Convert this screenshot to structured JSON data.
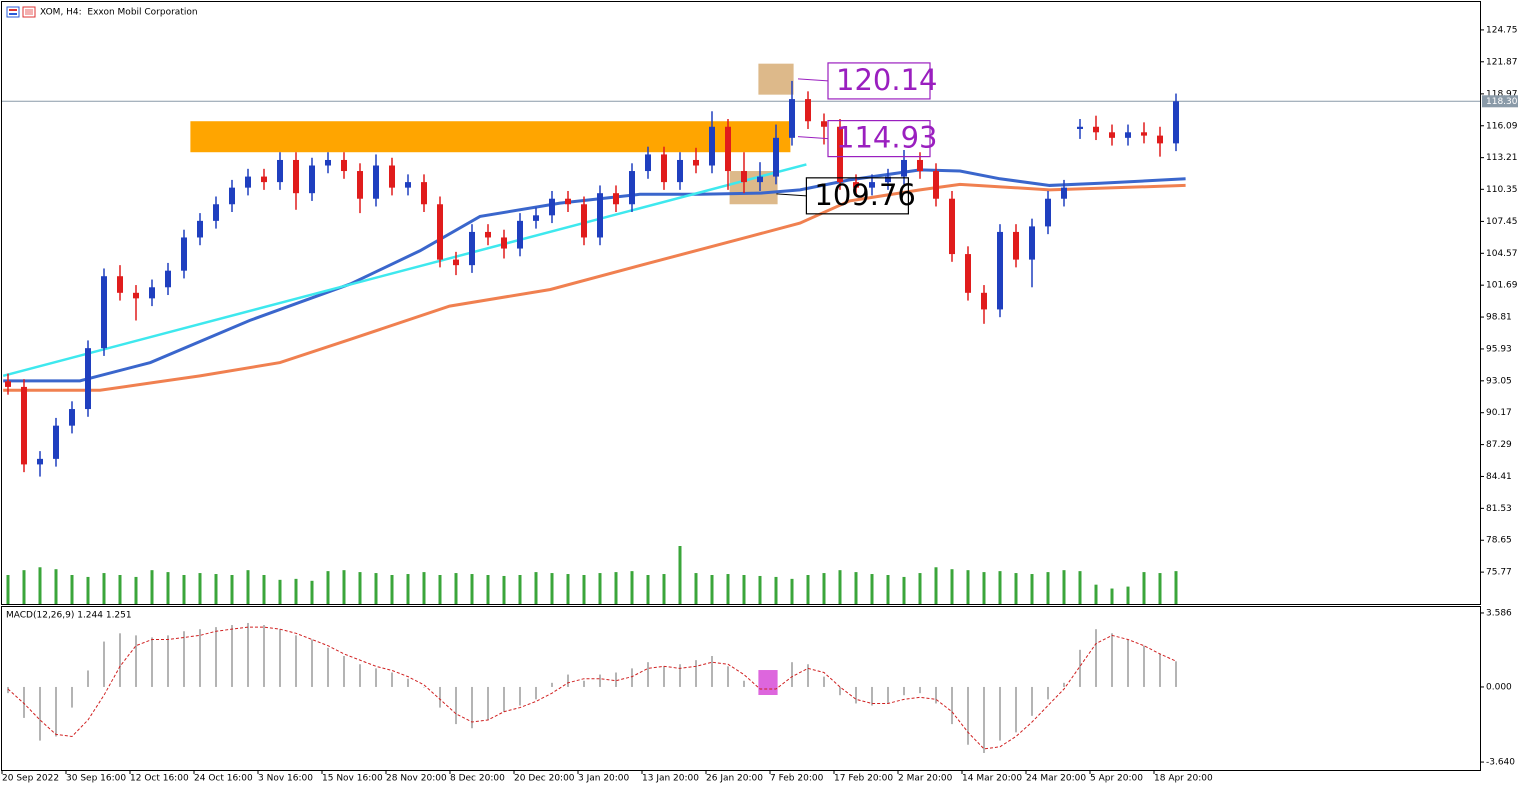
{
  "chart_data": [
    {
      "type": "candlestick",
      "title": "XOM, H4:  Exxon Mobil Corporation",
      "categories": [
        "20 Sep 2022",
        null,
        null,
        null,
        "30 Sep 16:00",
        null,
        null,
        null,
        "12 Oct 16:00",
        null,
        null,
        null,
        "24 Oct 16:00",
        null,
        null,
        null,
        "3 Nov 16:00",
        null,
        null,
        null,
        "15 Nov 16:00",
        null,
        null,
        null,
        "28 Nov 20:00",
        null,
        null,
        null,
        "8 Dec 20:00",
        null,
        null,
        null,
        "20 Dec 20:00",
        null,
        null,
        null,
        "3 Jan 20:00",
        null,
        null,
        null,
        "13 Jan 20:00",
        null,
        null,
        null,
        "26 Jan 20:00",
        null,
        null,
        null,
        "7 Feb 20:00",
        null,
        null,
        null,
        "17 Feb 20:00",
        null,
        null,
        null,
        "2 Mar 20:00",
        null,
        null,
        null,
        "14 Mar 20:00",
        null,
        null,
        null,
        "24 Mar 20:00",
        null,
        null,
        null,
        "5 Apr 20:00",
        null,
        null,
        null,
        "18 Apr 20:00",
        null
      ],
      "open": [
        93,
        92.5,
        85.5,
        86,
        89,
        90.5,
        96,
        102.5,
        101,
        100.5,
        101.5,
        103,
        106,
        107.5,
        109,
        110.5,
        111.5,
        111,
        113,
        110,
        112.5,
        113,
        112,
        109.5,
        112.5,
        110.5,
        111,
        109,
        104,
        103.5,
        106.5,
        106,
        105,
        107.5,
        108,
        109.5,
        109,
        106,
        110,
        109,
        112,
        113.5,
        111,
        113,
        112.5,
        116,
        112,
        111,
        111.5,
        115,
        118.5,
        116.5,
        116,
        111,
        110.5,
        111,
        111.5,
        113,
        112,
        109.5,
        104.5,
        101,
        99.5,
        106.5,
        104,
        107,
        109.5,
        115.8,
        116,
        115.5,
        115,
        115.5,
        115.2,
        114.5
      ],
      "high": [
        93.7,
        93.2,
        86.7,
        89.7,
        91.2,
        96.7,
        103.2,
        103.5,
        101.7,
        102.2,
        103.7,
        106.7,
        108.2,
        109.7,
        111.2,
        112.2,
        112.2,
        113.7,
        113.7,
        113.2,
        113.7,
        113.7,
        112.7,
        113.5,
        113.2,
        111.7,
        111.7,
        109.7,
        104.7,
        107.2,
        107.2,
        106.7,
        108.2,
        108.7,
        110.2,
        110.2,
        109.7,
        110.7,
        110.7,
        112.7,
        114.2,
        114.2,
        113.7,
        114.1,
        117.4,
        116.7,
        113.7,
        112.8,
        116.2,
        120.14,
        119.2,
        117.2,
        116.7,
        111.7,
        111.7,
        112.2,
        113.9,
        113.7,
        112.7,
        110.2,
        105.2,
        101.7,
        107.2,
        107.2,
        107.7,
        110.2,
        111.2,
        116.7,
        117.0,
        116.2,
        116.2,
        116.4,
        116.0,
        119.0
      ],
      "low": [
        91.8,
        84.8,
        84.4,
        85.3,
        88.3,
        89.8,
        95.3,
        100.3,
        98.5,
        99.8,
        100.8,
        102.3,
        105.3,
        106.8,
        108.3,
        109.8,
        110.3,
        110.3,
        108.5,
        109.3,
        111.8,
        111.3,
        108.2,
        108.8,
        109.8,
        109.8,
        108.3,
        103.3,
        102.6,
        102.8,
        105.3,
        104.1,
        104.3,
        106.8,
        107.3,
        108.3,
        105.3,
        105.3,
        108.3,
        108.3,
        111.3,
        110.3,
        110.3,
        111.8,
        111.8,
        110.3,
        110.0,
        110.2,
        110.8,
        114.3,
        115.8,
        114.4,
        110.3,
        109.8,
        109.8,
        110.3,
        110.8,
        111.3,
        108.8,
        103.8,
        100.3,
        98.2,
        98.8,
        103.3,
        101.5,
        106.3,
        108.8,
        114.9,
        114.8,
        114.3,
        114.3,
        114.5,
        113.3,
        113.8
      ],
      "close": [
        92.5,
        85.5,
        86,
        89,
        90.5,
        96,
        102.5,
        101,
        100.5,
        101.5,
        103,
        106,
        107.5,
        109,
        110.5,
        111.5,
        111,
        113,
        110,
        112.5,
        113,
        112,
        109.5,
        112.5,
        110.5,
        111,
        109,
        104,
        103.5,
        106.5,
        106,
        105,
        107.5,
        108,
        109.5,
        109,
        106,
        110,
        109,
        112,
        113.5,
        111,
        113,
        112.5,
        116,
        112,
        111,
        111.5,
        115,
        118.5,
        116.5,
        116,
        111,
        110.5,
        111,
        111.5,
        113,
        112,
        109.5,
        104.5,
        101,
        99.5,
        106.5,
        104,
        107,
        109.5,
        110.5,
        116,
        115.5,
        115,
        115.5,
        115.2,
        114.5,
        118.3
      ],
      "up_color": "#1f3fbf",
      "down_color": "#e01c1c",
      "ylim": [
        72.89,
        127.27
      ],
      "yticks": [
        124.75,
        121.87,
        118.97,
        116.09,
        113.21,
        110.35,
        107.45,
        104.57,
        101.69,
        98.81,
        95.93,
        93.05,
        90.17,
        87.29,
        84.41,
        81.53,
        78.65,
        75.77
      ],
      "last_price": {
        "value": 118.3,
        "label": "118.30"
      },
      "volume": {
        "color": "#3aa53a",
        "values": [
          30,
          35,
          38,
          36,
          30,
          28,
          32,
          30,
          28,
          35,
          33,
          30,
          32,
          31,
          30,
          35,
          30,
          25,
          26,
          24,
          34,
          35,
          33,
          32,
          30,
          31,
          33,
          30,
          32,
          31,
          30,
          29,
          30,
          33,
          32,
          31,
          30,
          32,
          33,
          34,
          30,
          31,
          60,
          32,
          30,
          31,
          30,
          29,
          28,
          26,
          30,
          32,
          35,
          33,
          31,
          30,
          28,
          32,
          38,
          36,
          35,
          33,
          34,
          32,
          31,
          33,
          35,
          34,
          20,
          16,
          18,
          33,
          32,
          34
        ]
      },
      "moving_averages": [
        {
          "color": "#3a66cc",
          "x": [
            -0.3,
            4.5,
            8.9,
            15.1,
            21.4,
            25.75,
            29.5,
            34.5,
            39.5,
            43.25,
            47,
            49.5,
            52.6,
            57,
            59.5,
            62,
            65.1,
            68.25,
            73.6
          ],
          "values": [
            93.05,
            93.05,
            94.7,
            98.5,
            101.8,
            104.8,
            107.9,
            109.1,
            109.9,
            109.9,
            110.0,
            110.3,
            111.2,
            112.1,
            112.0,
            111.3,
            110.7,
            110.9,
            111.3
          ]
        },
        {
          "color": "#f08050",
          "x": [
            -0.3,
            5.75,
            12,
            17,
            21.4,
            27.6,
            33.9,
            40.1,
            46.4,
            49.5,
            52.6,
            57,
            59.5,
            65.1,
            73.6
          ],
          "values": [
            92.2,
            92.2,
            93.5,
            94.7,
            96.8,
            99.8,
            101.3,
            103.7,
            106.1,
            107.3,
            109.3,
            110.3,
            110.8,
            110.3,
            110.7
          ]
        }
      ],
      "trendlines": [
        {
          "color": "#3ee8ee",
          "x": [
            -0.3,
            49.9
          ],
          "y": [
            93.5,
            112.6
          ]
        }
      ],
      "zones": [
        {
          "color": "#ffa500",
          "x": [
            11.4,
            48.9
          ],
          "y": [
            113.7,
            116.5
          ]
        },
        {
          "color": "#ddb98a",
          "x": [
            46.9,
            49.1
          ],
          "y": [
            118.9,
            121.7
          ]
        },
        {
          "color": "#ddb98a",
          "x": [
            45.1,
            48.1
          ],
          "y": [
            109.0,
            112.0
          ]
        }
      ],
      "price_labels": [
        {
          "value": 120.14,
          "x": 51.25,
          "color": "#9a1fbf"
        },
        {
          "value": 114.93,
          "x": 51.25,
          "color": "#9a1fbf"
        },
        {
          "value": 109.76,
          "x": 49.9,
          "color": "#000000"
        }
      ]
    },
    {
      "type": "macd",
      "title": "MACD(12,26,9) 1.244 1.251",
      "ylim": [
        -4.025,
        3.875
      ],
      "yticks": [
        3.586,
        {
          "value": 0,
          "label": "0.000"
        },
        {
          "value": -3.64,
          "label": "-3.640"
        }
      ],
      "histogram": {
        "color": "#b4b4b4",
        "values": [
          -0.3,
          -1.5,
          -2.6,
          -2.4,
          -1.0,
          0.8,
          2.2,
          2.6,
          2.5,
          2.4,
          2.5,
          2.7,
          2.8,
          2.9,
          3.0,
          3.1,
          3.0,
          2.8,
          2.5,
          2.3,
          1.9,
          1.5,
          1.1,
          0.9,
          0.7,
          0.4,
          0.0,
          -1.0,
          -1.8,
          -2.0,
          -1.6,
          -1.2,
          -0.9,
          -0.6,
          0.2,
          0.6,
          0.3,
          0.6,
          0.7,
          0.9,
          1.2,
          1.0,
          1.1,
          1.3,
          1.5,
          1.0,
          0.3,
          -0.2,
          0.4,
          1.2,
          1.1,
          0.5,
          -0.4,
          -0.8,
          -0.9,
          -0.8,
          -0.4,
          -0.3,
          -0.8,
          -1.8,
          -2.8,
          -3.2,
          -2.6,
          -2.2,
          -1.4,
          -0.6,
          0.2,
          1.8,
          2.8,
          2.6,
          2.3,
          2.0,
          1.6,
          1.244
        ]
      },
      "signal": {
        "color": "#d02020",
        "values": [
          -0.1,
          -0.8,
          -1.6,
          -2.3,
          -2.4,
          -1.6,
          -0.4,
          1.0,
          2.0,
          2.3,
          2.3,
          2.4,
          2.5,
          2.7,
          2.8,
          2.9,
          2.9,
          2.8,
          2.6,
          2.3,
          2.0,
          1.6,
          1.3,
          1.0,
          0.8,
          0.5,
          0.1,
          -0.6,
          -1.3,
          -1.7,
          -1.6,
          -1.2,
          -1.0,
          -0.7,
          -0.3,
          0.2,
          0.4,
          0.4,
          0.3,
          0.5,
          0.9,
          1.0,
          0.9,
          1.0,
          1.2,
          1.1,
          0.6,
          -0.1,
          -0.1,
          0.5,
          0.9,
          0.7,
          0.0,
          -0.6,
          -0.8,
          -0.8,
          -0.6,
          -0.5,
          -0.6,
          -1.2,
          -2.2,
          -3.0,
          -2.9,
          -2.4,
          -1.7,
          -0.9,
          -0.1,
          1.0,
          2.1,
          2.5,
          2.3,
          2.0,
          1.6,
          1.251
        ]
      },
      "zones": [
        {
          "color": "#dd66dd",
          "x": [
            46.9,
            48.1
          ],
          "y": [
            -0.39,
            0.82
          ]
        }
      ]
    }
  ]
}
